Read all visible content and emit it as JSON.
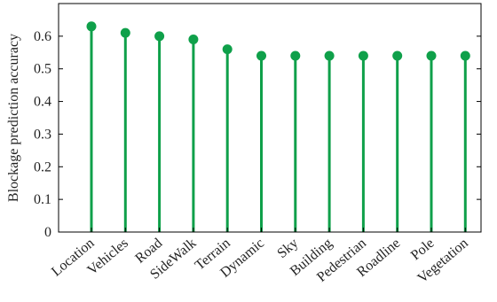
{
  "chart_data": {
    "type": "stem",
    "title": "",
    "xlabel": "",
    "ylabel": "Blockage prediction accuracy",
    "categories": [
      "Location",
      "Vehicles",
      "Road",
      "SideWalk",
      "Terrain",
      "Dynamic",
      "Sky",
      "Building",
      "Pedestrian",
      "Roadline",
      "Pole",
      "Vegetation"
    ],
    "values": [
      0.63,
      0.61,
      0.6,
      0.59,
      0.56,
      0.54,
      0.54,
      0.54,
      0.54,
      0.54,
      0.54,
      0.54
    ],
    "ylim": [
      0,
      0.7
    ],
    "yticks": [
      "0",
      "0.1",
      "0.2",
      "0.3",
      "0.4",
      "0.5",
      "0.6"
    ],
    "grid": false,
    "color": "#0fa04a"
  }
}
